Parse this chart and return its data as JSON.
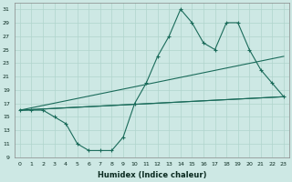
{
  "xlabel": "Humidex (Indice chaleur)",
  "background_color": "#cde8e4",
  "grid_color": "#b0d4cc",
  "line_color": "#1a6b5a",
  "xlim": [
    -0.5,
    23.5
  ],
  "ylim": [
    9,
    32
  ],
  "yticks": [
    9,
    11,
    13,
    15,
    17,
    19,
    21,
    23,
    25,
    27,
    29,
    31
  ],
  "xticks": [
    0,
    1,
    2,
    3,
    4,
    5,
    6,
    7,
    8,
    9,
    10,
    11,
    12,
    13,
    14,
    15,
    16,
    17,
    18,
    19,
    20,
    21,
    22,
    23
  ],
  "series1_x": [
    0,
    1,
    2,
    3,
    4,
    5,
    6,
    7,
    8,
    9,
    10,
    11,
    12,
    13,
    14,
    15,
    16,
    17,
    18,
    19,
    20,
    21,
    22,
    23
  ],
  "series1_y": [
    16,
    16,
    16,
    15,
    14,
    11,
    10,
    10,
    10,
    12,
    17,
    20,
    24,
    27,
    31,
    29,
    26,
    25,
    29,
    29,
    25,
    22,
    20,
    18
  ],
  "series2_x": [
    0,
    23
  ],
  "series2_y": [
    16,
    18
  ],
  "series3_x": [
    0,
    23
  ],
  "series3_y": [
    16,
    24
  ],
  "series4_x": [
    0,
    23
  ],
  "series4_y": [
    16,
    18
  ]
}
